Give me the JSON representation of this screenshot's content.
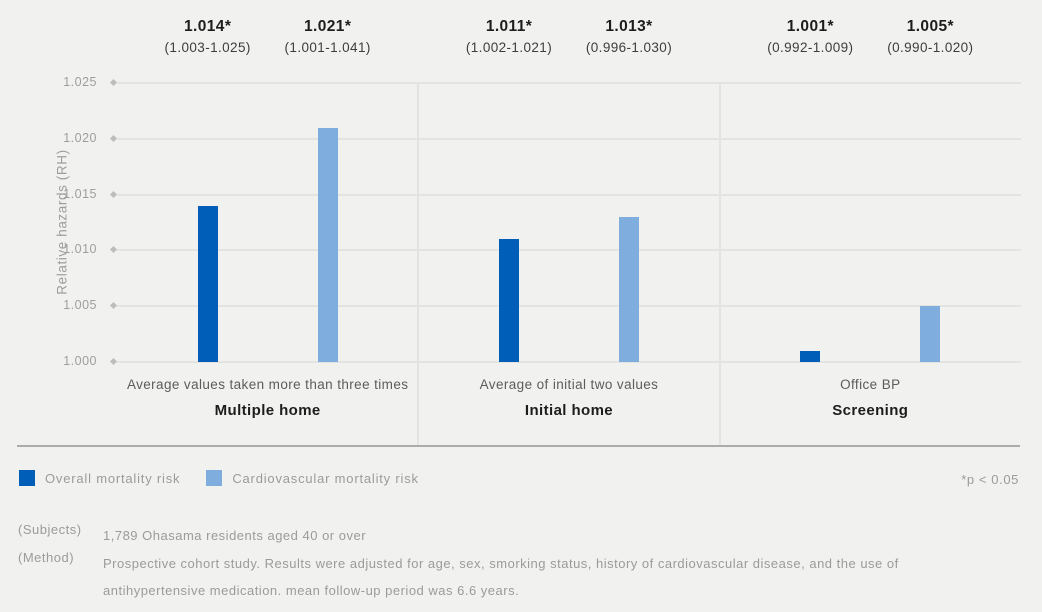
{
  "colors": {
    "background": "#F1F1F0",
    "gridline": "#E3E3E1",
    "overall_blue": "#005EB8",
    "cardio_blue": "#7FADDE"
  },
  "chart_data": {
    "type": "bar",
    "title": "",
    "xlabel": "",
    "ylabel": "Relative hazards (RH)",
    "ylim": [
      1.0,
      1.025
    ],
    "yticks": [
      1.0,
      1.005,
      1.01,
      1.015,
      1.02,
      1.025
    ],
    "ytick_labels": [
      "1.000",
      "1.005",
      "1.010",
      "1.015",
      "1.020",
      "1.025"
    ],
    "grid": true,
    "legend_position": "bottom-left",
    "series": [
      {
        "name": "Overall mortality risk",
        "color": "#005EB8"
      },
      {
        "name": "Cardiovascular mortality risk",
        "color": "#7FADDE"
      }
    ],
    "groups": [
      {
        "label": "Multiple home",
        "sublabel": "Average values taken more than three times",
        "values": [
          {
            "series": "Overall mortality risk",
            "value": 1.014,
            "display": "1.014*",
            "ci": "(1.003-1.025)"
          },
          {
            "series": "Cardiovascular mortality risk",
            "value": 1.021,
            "display": "1.021*",
            "ci": "(1.001-1.041)"
          }
        ]
      },
      {
        "label": "Initial home",
        "sublabel": "Average of initial two values",
        "values": [
          {
            "series": "Overall mortality risk",
            "value": 1.011,
            "display": "1.011*",
            "ci": "(1.002-1.021)"
          },
          {
            "series": "Cardiovascular mortality risk",
            "value": 1.013,
            "display": "1.013*",
            "ci": "(0.996-1.030)"
          }
        ]
      },
      {
        "label": "Screening",
        "sublabel": "Office BP",
        "values": [
          {
            "series": "Overall mortality risk",
            "value": 1.001,
            "display": "1.001*",
            "ci": "(0.992-1.009)"
          },
          {
            "series": "Cardiovascular mortality risk",
            "value": 1.005,
            "display": "1.005*",
            "ci": "(0.990-1.020)"
          }
        ]
      }
    ]
  },
  "legend": {
    "items": [
      {
        "label": "Overall mortality risk",
        "color": "#005EB8"
      },
      {
        "label": "Cardiovascular mortality risk",
        "color": "#7FADDE"
      }
    ],
    "note": "*p < 0.05"
  },
  "footer": {
    "subjects_label": "(Subjects)",
    "subjects_text": "1,789 Ohasama residents aged 40 or over",
    "method_label": "(Method)",
    "method_text": "Prospective cohort study. Results were adjusted for age, sex, smorking status, history of cardiovascular disease, and the use of antihypertensive medication. mean follow-up period was 6.6 years."
  }
}
